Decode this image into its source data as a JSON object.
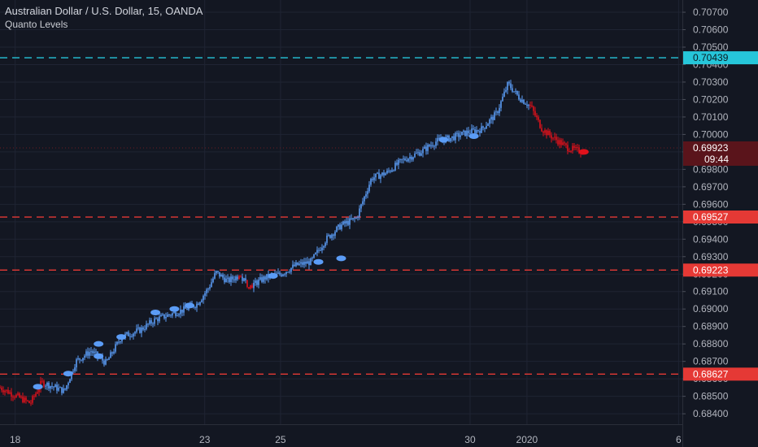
{
  "header": {
    "title": "Australian Dollar / U.S. Dollar, 15, OANDA",
    "indicator": "Quanto Levels"
  },
  "colors": {
    "background": "#131722",
    "grid": "#1f2433",
    "up": "#5b9cf6",
    "down": "#e0111b",
    "cyan_level": "#26c6da",
    "red_level": "#e53935",
    "axis_text": "#b2b5be"
  },
  "chart_data": {
    "type": "candlestick",
    "title": "Australian Dollar / U.S. Dollar, 15, OANDA",
    "interval": "15",
    "source": "OANDA",
    "y_ticks": [
      "0.70700",
      "0.70600",
      "0.70500",
      "0.70400",
      "0.70300",
      "0.70200",
      "0.70100",
      "0.70000",
      "0.69900",
      "0.69800",
      "0.69700",
      "0.69600",
      "0.69500",
      "0.69400",
      "0.69300",
      "0.69200",
      "0.69100",
      "0.69000",
      "0.68900",
      "0.68800",
      "0.68700",
      "0.68600",
      "0.68500",
      "0.68400"
    ],
    "ylim": [
      0.6834,
      0.7077
    ],
    "x_ticks": [
      {
        "label": "18",
        "t": 0.0
      },
      {
        "label": "23",
        "t": 5.0
      },
      {
        "label": "25",
        "t": 7.0
      },
      {
        "label": "30",
        "t": 12.0
      },
      {
        "label": "2020",
        "t": 13.5
      },
      {
        "label": "6",
        "t": 17.5
      }
    ],
    "xlim": [
      -0.4,
      17.6
    ],
    "price_path": [
      [
        -0.4,
        0.6855
      ],
      [
        0.4,
        0.6846
      ],
      [
        0.7,
        0.6858
      ],
      [
        1.3,
        0.6853
      ],
      [
        1.6,
        0.687
      ],
      [
        2.0,
        0.6876
      ],
      [
        2.4,
        0.6869
      ],
      [
        2.8,
        0.6884
      ],
      [
        3.3,
        0.6888
      ],
      [
        3.7,
        0.6894
      ],
      [
        4.1,
        0.6897
      ],
      [
        4.5,
        0.69
      ],
      [
        4.8,
        0.6903
      ],
      [
        5.1,
        0.6912
      ],
      [
        5.3,
        0.6921
      ],
      [
        5.6,
        0.6916
      ],
      [
        5.9,
        0.6919
      ],
      [
        6.2,
        0.6913
      ],
      [
        6.6,
        0.6918
      ],
      [
        7.0,
        0.692
      ],
      [
        7.4,
        0.6925
      ],
      [
        7.8,
        0.6927
      ],
      [
        8.2,
        0.694
      ],
      [
        8.6,
        0.6948
      ],
      [
        9.0,
        0.6952
      ],
      [
        9.4,
        0.6975
      ],
      [
        9.8,
        0.6978
      ],
      [
        10.2,
        0.6985
      ],
      [
        10.7,
        0.699
      ],
      [
        11.1,
        0.6996
      ],
      [
        11.5,
        0.6998
      ],
      [
        11.9,
        0.7001
      ],
      [
        12.3,
        0.7003
      ],
      [
        12.7,
        0.7012
      ],
      [
        13.0,
        0.7029
      ],
      [
        13.3,
        0.7021
      ],
      [
        13.6,
        0.7016
      ],
      [
        13.9,
        0.7003
      ],
      [
        14.2,
        0.6998
      ],
      [
        14.6,
        0.6992
      ],
      [
        15.0,
        0.699
      ]
    ],
    "markers": [
      {
        "t": 0.6,
        "y": 0.68555
      },
      {
        "t": 1.4,
        "y": 0.6863
      },
      {
        "t": 2.2,
        "y": 0.688
      },
      {
        "t": 2.2,
        "y": 0.6873
      },
      {
        "t": 2.8,
        "y": 0.6884
      },
      {
        "t": 3.7,
        "y": 0.6898
      },
      {
        "t": 4.2,
        "y": 0.69
      },
      {
        "t": 4.6,
        "y": 0.6902
      },
      {
        "t": 6.8,
        "y": 0.6919
      },
      {
        "t": 8.0,
        "y": 0.6927
      },
      {
        "t": 8.6,
        "y": 0.6929
      },
      {
        "t": 11.3,
        "y": 0.6997
      },
      {
        "t": 12.1,
        "y": 0.6999
      },
      {
        "t": 15.0,
        "y": 0.699
      }
    ],
    "levels": [
      {
        "label": "0.70439",
        "value": 0.70439,
        "color": "cyan"
      },
      {
        "label": "0.69527",
        "value": 0.69527,
        "color": "red"
      },
      {
        "label": "0.69223",
        "value": 0.69223,
        "color": "red"
      },
      {
        "label": "0.68627",
        "value": 0.68627,
        "color": "red"
      }
    ],
    "last_price": {
      "label": "0.69923",
      "value": 0.69923,
      "countdown": "09:44"
    },
    "grid": true
  }
}
